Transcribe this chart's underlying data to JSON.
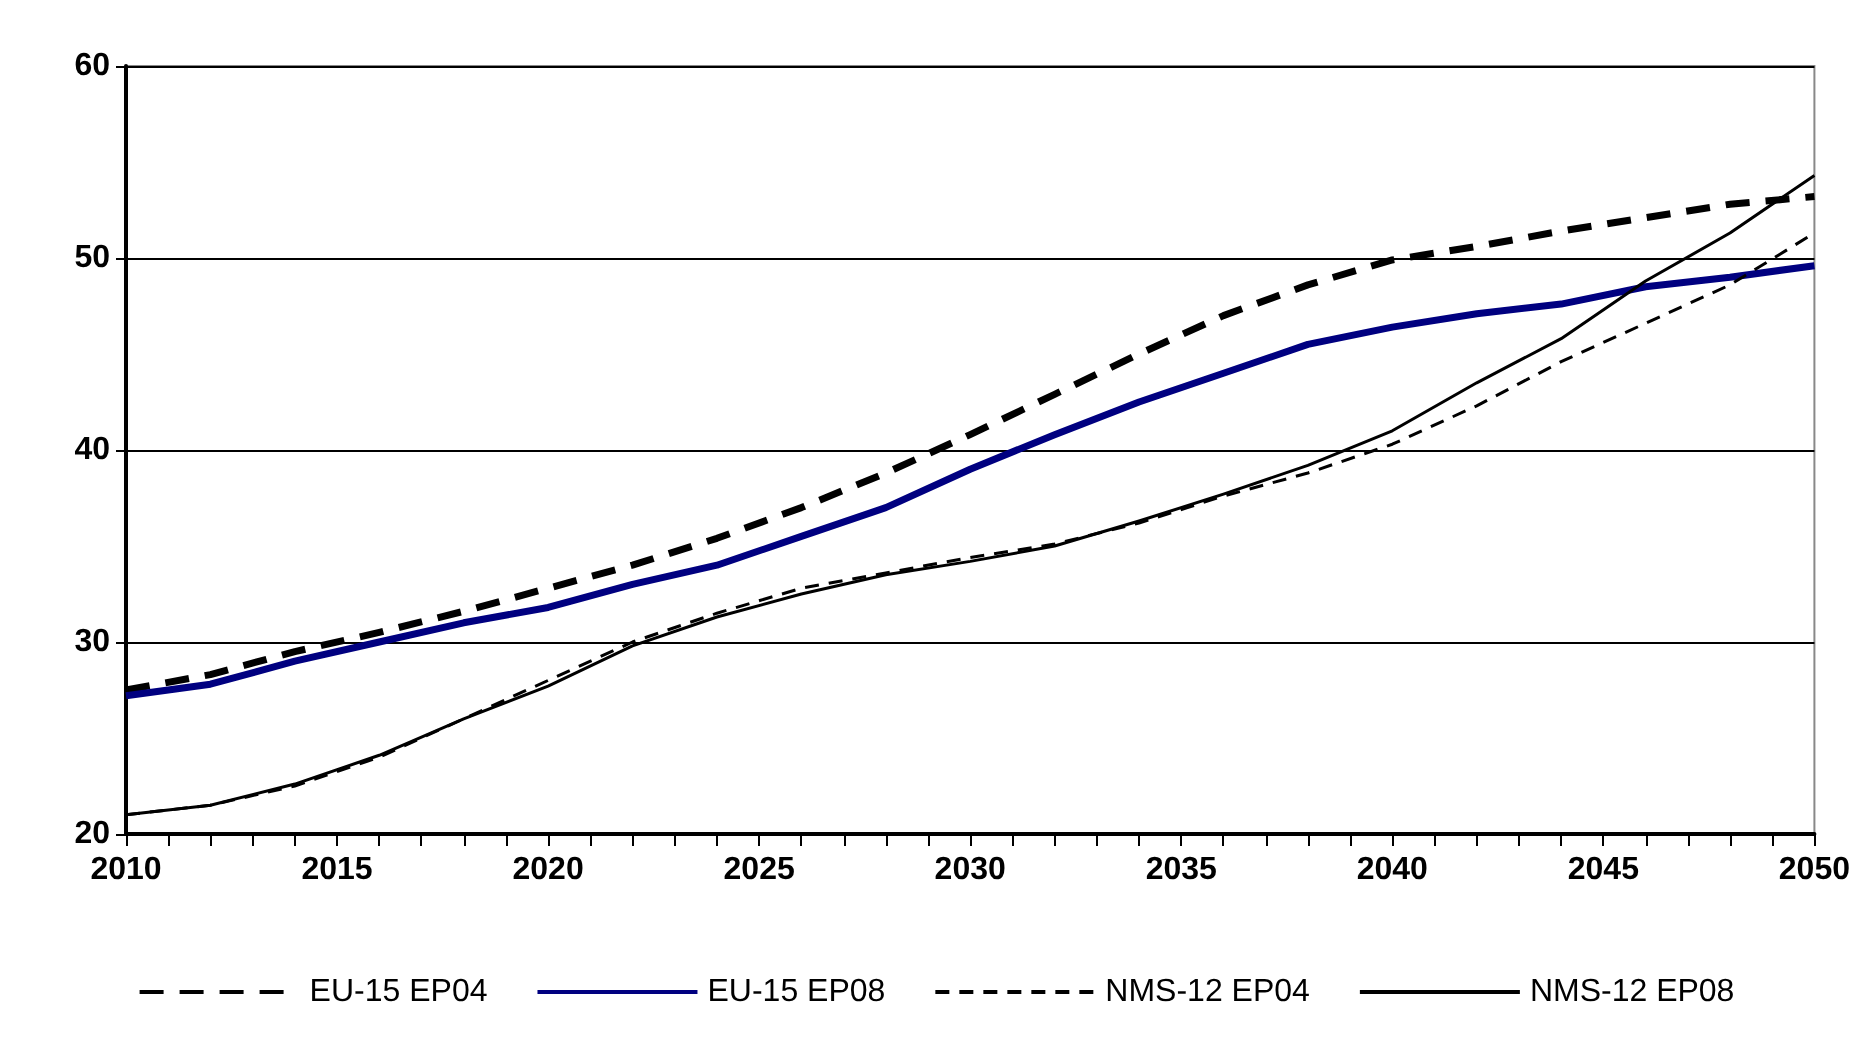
{
  "chart_data": {
    "type": "line",
    "x": [
      2010,
      2012,
      2014,
      2016,
      2018,
      2020,
      2022,
      2024,
      2026,
      2028,
      2030,
      2032,
      2034,
      2036,
      2038,
      2040,
      2042,
      2044,
      2046,
      2048,
      2050
    ],
    "series": [
      {
        "name": "EU-15 EP04",
        "color": "#000000",
        "line_style": "dashed",
        "values": [
          27.5,
          28.3,
          29.5,
          30.5,
          31.6,
          32.8,
          34.0,
          35.4,
          37.0,
          38.8,
          40.8,
          42.9,
          45.0,
          47.0,
          48.6,
          49.9,
          50.6,
          51.4,
          52.1,
          52.8,
          53.2
        ]
      },
      {
        "name": "EU-15 EP08",
        "color": "#000080",
        "line_style": "solid",
        "values": [
          27.2,
          27.8,
          29.0,
          30.0,
          31.0,
          31.8,
          33.0,
          34.0,
          35.5,
          37.0,
          39.0,
          40.8,
          42.5,
          44.0,
          45.5,
          46.4,
          47.1,
          47.6,
          48.5,
          49.0,
          49.6
        ]
      },
      {
        "name": "NMS-12 EP04",
        "color": "#000000",
        "line_style": "dashed",
        "values": [
          21.0,
          21.5,
          22.5,
          24.0,
          26.0,
          28.0,
          30.0,
          31.5,
          32.8,
          33.6,
          34.4,
          35.1,
          36.2,
          37.6,
          38.8,
          40.3,
          42.3,
          44.6,
          46.6,
          48.6,
          51.3
        ]
      },
      {
        "name": "NMS-12 EP08",
        "color": "#000000",
        "line_style": "solid",
        "values": [
          21.0,
          21.5,
          22.6,
          24.1,
          26.0,
          27.7,
          29.8,
          31.3,
          32.5,
          33.5,
          34.2,
          35.0,
          36.3,
          37.7,
          39.2,
          41.0,
          43.5,
          45.8,
          48.8,
          51.3,
          54.3
        ]
      }
    ],
    "xlim": [
      2010,
      2050
    ],
    "xticks": [
      2010,
      {
        "value": 2011,
        "label": null
      },
      {
        "value": 2012,
        "label": null
      },
      {
        "value": 2013,
        "label": null
      },
      {
        "value": 2014,
        "label": null
      },
      2015,
      {
        "value": 2016,
        "label": null
      },
      {
        "value": 2017,
        "label": null
      },
      {
        "value": 2018,
        "label": null
      },
      {
        "value": 2019,
        "label": null
      },
      2020,
      {
        "value": 2021,
        "label": null
      },
      {
        "value": 2022,
        "label": null
      },
      {
        "value": 2023,
        "label": null
      },
      {
        "value": 2024,
        "label": null
      },
      2025,
      {
        "value": 2026,
        "label": null
      },
      {
        "value": 2027,
        "label": null
      },
      {
        "value": 2028,
        "label": null
      },
      {
        "value": 2029,
        "label": null
      },
      2030,
      {
        "value": 2031,
        "label": null
      },
      {
        "value": 2032,
        "label": null
      },
      {
        "value": 2033,
        "label": null
      },
      {
        "value": 2034,
        "label": null
      },
      2035,
      {
        "value": 2036,
        "label": null
      },
      {
        "value": 2037,
        "label": null
      },
      {
        "value": 2038,
        "label": null
      },
      {
        "value": 2039,
        "label": null
      },
      2040,
      {
        "value": 2041,
        "label": null
      },
      {
        "value": 2042,
        "label": null
      },
      {
        "value": 2043,
        "label": null
      },
      {
        "value": 2044,
        "label": null
      },
      2045,
      {
        "value": 2046,
        "label": null
      },
      {
        "value": 2047,
        "label": null
      },
      {
        "value": 2048,
        "label": null
      },
      {
        "value": 2049,
        "label": null
      },
      2050
    ],
    "ylim": [
      20,
      60
    ],
    "yticks": [
      20,
      30,
      40,
      50,
      60
    ],
    "grid": "y",
    "legend": "bottom",
    "marker": "none"
  }
}
